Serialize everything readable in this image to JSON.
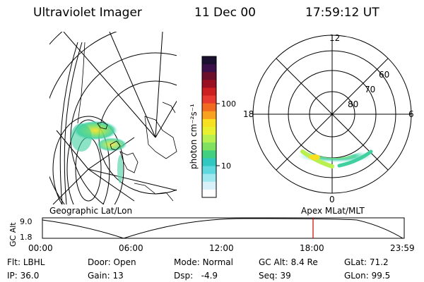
{
  "header": {
    "instrument": "Ultraviolet Imager",
    "date": "11 Dec 00",
    "time": "17:59:12 UT"
  },
  "colorbar": {
    "label": "photon cm⁻²s⁻¹",
    "ticks": [
      "100",
      "10"
    ],
    "colors": [
      "#1a0f2e",
      "#3a0f4a",
      "#6b0f2a",
      "#9b1020",
      "#cc2020",
      "#e83a30",
      "#f26a20",
      "#f8a020",
      "#f6e020",
      "#e8f030",
      "#b8f050",
      "#80e060",
      "#40d080",
      "#30c8c0",
      "#60d8e0",
      "#a0e8f0",
      "#d8f0f8",
      "#ffffff"
    ]
  },
  "left_map": {
    "label": "Geographic Lat/Lon"
  },
  "right_polar": {
    "label": "Apex MLat/MLT",
    "mlt_labels": {
      "top": "12",
      "left": "18",
      "right": "6",
      "bottom": "0"
    },
    "lat_labels": [
      "60",
      "70",
      "80"
    ]
  },
  "timeline": {
    "ylabel": "GC Alt",
    "yticks": [
      "9.0",
      "1.8"
    ],
    "xticks": [
      "00:00",
      "06:00",
      "12:00",
      "18:00",
      "23:59"
    ],
    "marker_color": "#cc0000"
  },
  "info": {
    "flt_label": "Flt:",
    "flt_value": "LBHL",
    "ip_label": "IP:",
    "ip_value": "36.0",
    "door_label": "Door:",
    "door_value": "Open",
    "gain_label": "Gain:",
    "gain_value": "13",
    "mode_label": "Mode:",
    "mode_value": "Normal",
    "dsp_label": "Dsp:",
    "dsp_value": "-4.9",
    "gcalt_label": "GC Alt:",
    "gcalt_value": "8.4 Re",
    "seq_label": "Seq:",
    "seq_value": "39",
    "glat_label": "GLat:",
    "glat_value": "71.2",
    "glon_label": "GLon:",
    "glon_value": "99.5"
  }
}
